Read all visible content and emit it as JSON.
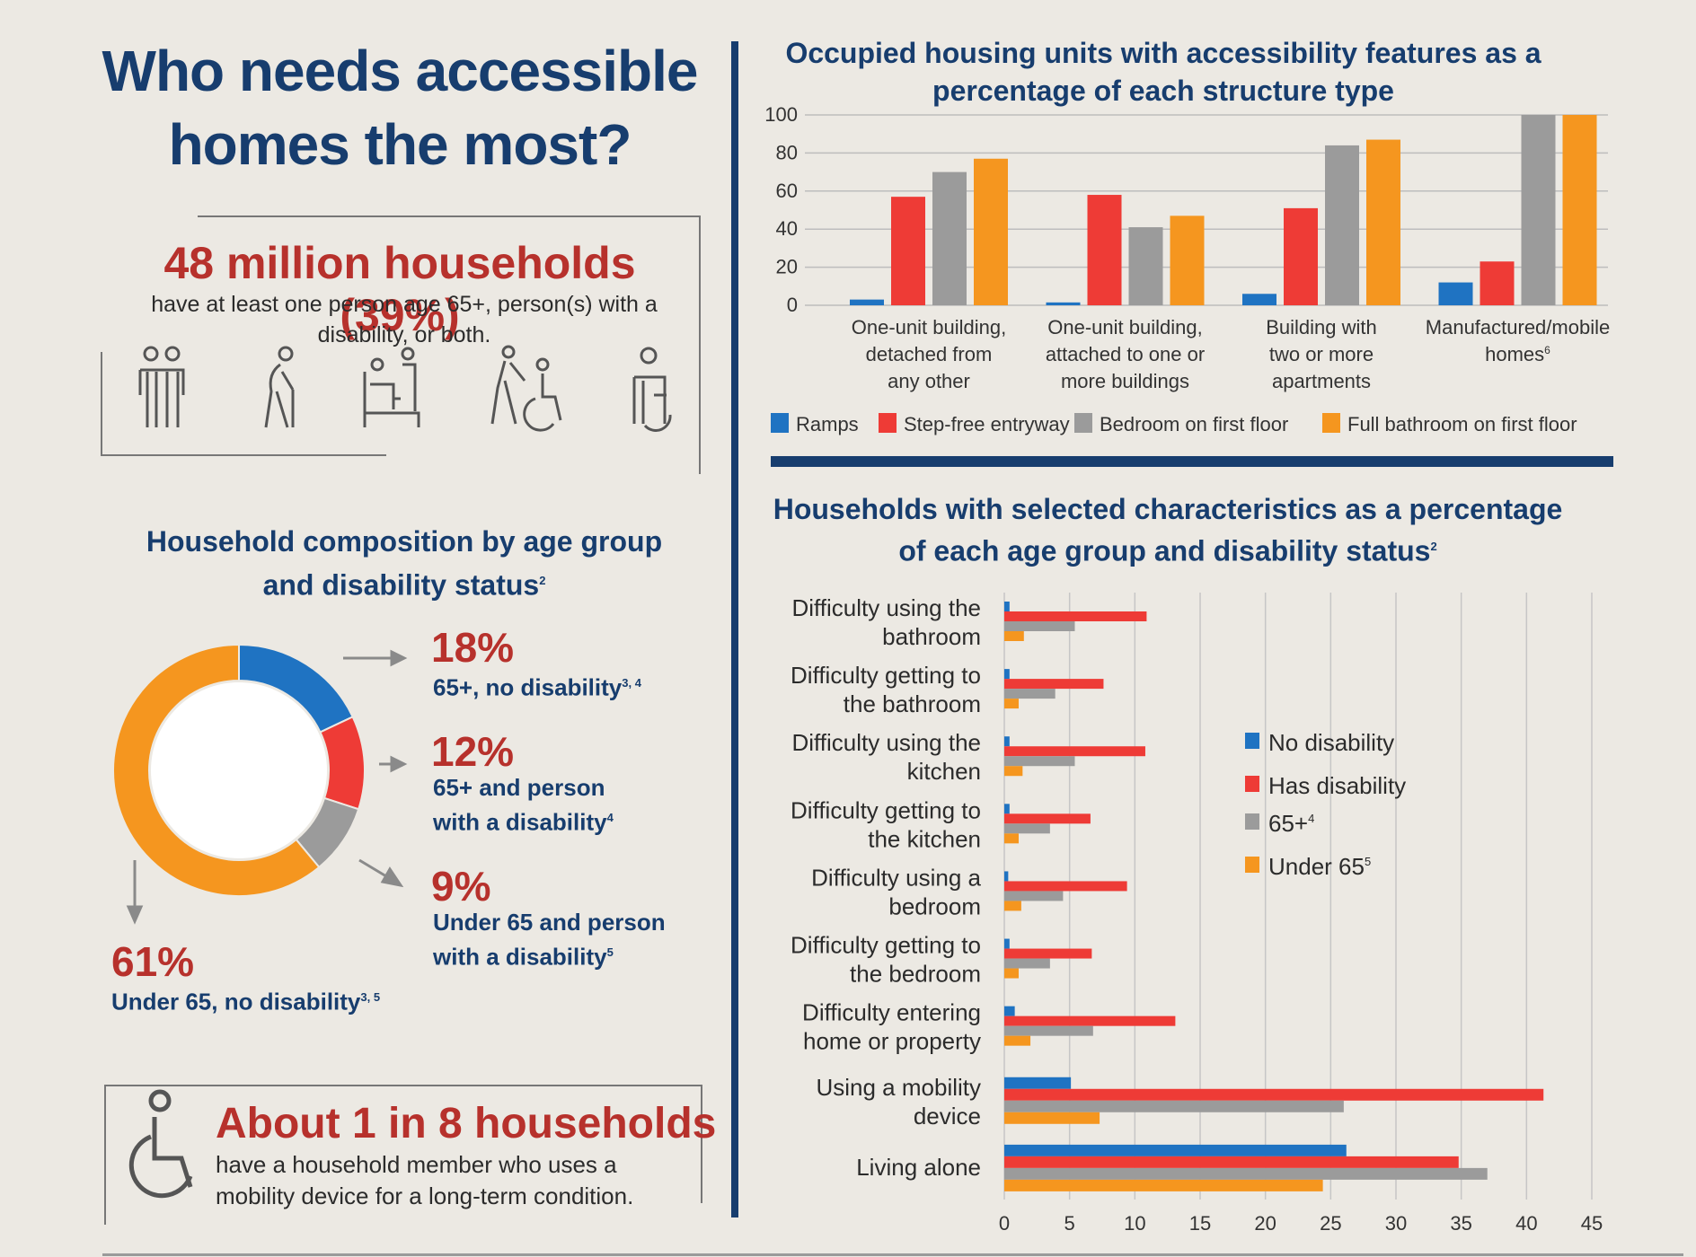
{
  "title": "Who needs accessible homes the most?",
  "households": {
    "number": "48 million households (39%)",
    "text": "have at least one person age 65+, person(s) with a disability, or both."
  },
  "icons": [
    "two-people-icon",
    "person-with-cane-icon",
    "person-in-bed-icon",
    "person-with-walker-icon",
    "person-in-wheelchair-icon"
  ],
  "donut": {
    "title_line1": "Household composition by age group",
    "title_line2": "and disability status",
    "title_sup": "2",
    "labels": [
      {
        "pct": "18%",
        "line1": "65+, no disability",
        "sup": "3, 4"
      },
      {
        "pct": "12%",
        "line1": "65+ and person",
        "line2": "with a disability",
        "sup": "4"
      },
      {
        "pct": "9%",
        "line1": "Under 65 and person",
        "line2": "with a disability",
        "sup": "5"
      },
      {
        "pct": "61%",
        "line1": "Under 65, no disability",
        "sup": "3, 5"
      }
    ]
  },
  "mobility": {
    "number": "About 1 in 8 households",
    "text": "have a household member who uses a mobility device for a long-term condition."
  },
  "colors": {
    "blue": "#1f73c2",
    "red": "#ee3b36",
    "gray": "#9b9b9b",
    "orange": "#f5961f",
    "navy": "#173d6e",
    "darkred": "#b7312c"
  },
  "chart_data": [
    {
      "type": "pie",
      "title": "Household composition by age group and disability status",
      "categories": [
        "65+, no disability",
        "65+ and person with a disability",
        "Under 65 and person with a disability",
        "Under 65, no disability"
      ],
      "values": [
        18,
        12,
        9,
        61
      ],
      "colors": [
        "#1f73c2",
        "#ee3b36",
        "#9b9b9b",
        "#f5961f"
      ]
    },
    {
      "type": "bar",
      "title_line1": "Occupied housing units with accessibility features as a",
      "title_line2": "percentage of each structure type",
      "categories": [
        [
          "One-unit building,",
          "detached from",
          "any other"
        ],
        [
          "One-unit building,",
          "attached to one or",
          "more buildings"
        ],
        [
          "Building with",
          "two or more",
          "apartments"
        ],
        [
          "Manufactured/mobile",
          "homes"
        ]
      ],
      "category_sups": [
        "",
        "",
        "",
        "6"
      ],
      "series": [
        {
          "name": "Ramps",
          "values": [
            3,
            1.5,
            6,
            12
          ]
        },
        {
          "name": "Step-free entryway",
          "values": [
            57,
            58,
            51,
            23
          ]
        },
        {
          "name": "Bedroom on first floor",
          "values": [
            70,
            41,
            84,
            100
          ]
        },
        {
          "name": "Full bathroom on first floor",
          "values": [
            77,
            47,
            87,
            100
          ]
        }
      ],
      "yticks": [
        "0",
        "20",
        "40",
        "60",
        "80",
        "100"
      ],
      "ylim": [
        0,
        100
      ],
      "grid": true,
      "legend_position": "bottom"
    },
    {
      "type": "bar",
      "orientation": "horizontal",
      "title_line1": "Households with selected characteristics as a percentage",
      "title_line2": "of each age group and disability status",
      "title_sup": "2",
      "categories": [
        [
          "Difficulty using the",
          "bathroom"
        ],
        [
          "Difficulty getting to",
          "the bathroom"
        ],
        [
          "Difficulty using the",
          "kitchen"
        ],
        [
          "Difficulty getting to",
          "the kitchen"
        ],
        [
          "Difficulty using a",
          "bedroom"
        ],
        [
          "Difficulty getting to",
          "the bedroom"
        ],
        [
          "Difficulty entering",
          "home or property"
        ],
        [
          "Using a mobility",
          "device"
        ],
        [
          "Living alone"
        ]
      ],
      "series": [
        {
          "name": "No disability",
          "sup": "",
          "values": [
            0.4,
            0.4,
            0.4,
            0.4,
            0.3,
            0.4,
            0.8,
            5.1,
            26.2
          ]
        },
        {
          "name": "Has disability",
          "sup": "",
          "values": [
            10.9,
            7.6,
            10.8,
            6.6,
            9.4,
            6.7,
            13.1,
            41.3,
            34.8
          ]
        },
        {
          "name": "65+",
          "sup": "4",
          "values": [
            5.4,
            3.9,
            5.4,
            3.5,
            4.5,
            3.5,
            6.8,
            26,
            37
          ]
        },
        {
          "name": "Under 65",
          "sup": "5",
          "values": [
            1.5,
            1.1,
            1.4,
            1.1,
            1.3,
            1.1,
            2.0,
            7.3,
            24.4
          ]
        }
      ],
      "xticks": [
        "0",
        "5",
        "10",
        "15",
        "20",
        "25",
        "30",
        "35",
        "40",
        "45"
      ],
      "xlim": [
        0,
        45
      ],
      "grid": true,
      "legend_position": "right"
    }
  ]
}
